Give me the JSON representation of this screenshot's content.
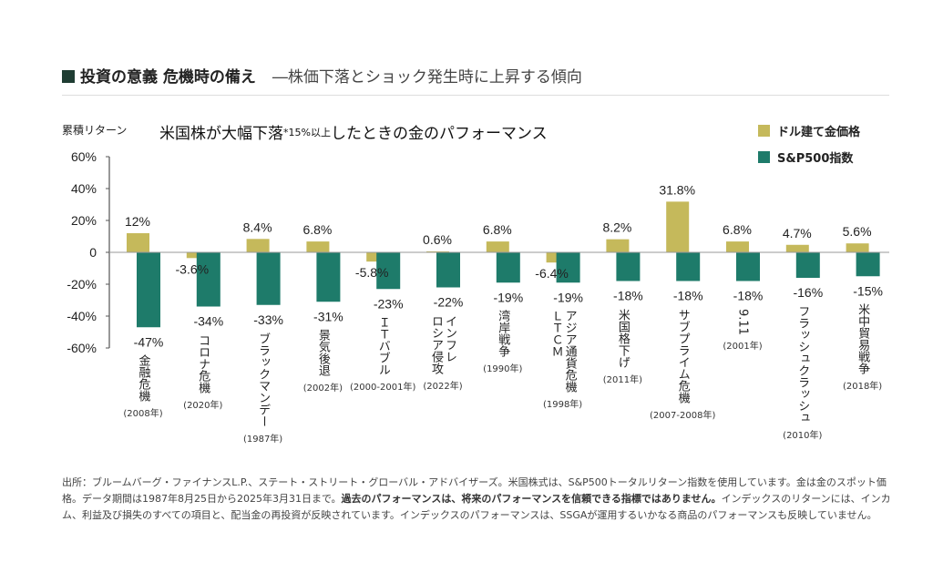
{
  "header": {
    "title": "投資の意義 危機時の備え",
    "subtitle": "―株価下落とショック発生時に上昇する傾向"
  },
  "chart_data": {
    "type": "bar",
    "title": "米国株が大幅下落",
    "title_note": "*15%以上",
    "title_suffix": "したときの金のパフォーマンス",
    "ylabel": "累積リターン",
    "ylim": [
      -60,
      60
    ],
    "yticks": [
      60,
      40,
      20,
      0,
      -20,
      -40,
      -60
    ],
    "ytick_labels": [
      "60%",
      "40%",
      "20%",
      "0",
      "-20%",
      "-40%",
      "-60%"
    ],
    "legend_position": "top-right",
    "categories": [
      {
        "name": "金融危機",
        "year": "(2008年)"
      },
      {
        "name": "コロナ危機",
        "year": "(2020年)"
      },
      {
        "name": "ブラックマンデー",
        "year": "(1987年)"
      },
      {
        "name": "景気後退",
        "year": "(2002年)"
      },
      {
        "name": "ＩＴバブル",
        "year": "(2000-2001年)"
      },
      {
        "name": "インフレ\nロシア侵攻",
        "year": "(2022年)"
      },
      {
        "name": "湾岸戦争",
        "year": "(1990年)"
      },
      {
        "name": "アジア通貨危機\nＬＴＣＭ",
        "year": "(1998年)"
      },
      {
        "name": "米国格下げ",
        "year": "(2011年)"
      },
      {
        "name": "サブプライム危機",
        "year": "(2007-2008年)"
      },
      {
        "name": "9.11",
        "year": "(2001年)"
      },
      {
        "name": "フラッシュクラッシュ",
        "year": "(2010年)"
      },
      {
        "name": "米中貿易戦争",
        "year": "(2018年)"
      }
    ],
    "series": [
      {
        "name": "ドル建て金価格",
        "color": "#c5b95b",
        "values": [
          12,
          -3.6,
          8.4,
          6.8,
          -5.8,
          0.6,
          6.8,
          -6.4,
          8.2,
          31.8,
          6.8,
          4.7,
          5.6
        ],
        "labels": [
          "12%",
          "-3.6%",
          "8.4%",
          "6.8%",
          "-5.8%",
          "0.6%",
          "6.8%",
          "-6.4%",
          "8.2%",
          "31.8%",
          "6.8%",
          "4.7%",
          "5.6%"
        ]
      },
      {
        "name": "S&P500指数",
        "color": "#1e7b6a",
        "values": [
          -47,
          -34,
          -33,
          -31,
          -23,
          -22,
          -19,
          -19,
          -18,
          -18,
          -18,
          -16,
          -15
        ],
        "labels": [
          "-47%",
          "-34%",
          "-33%",
          "-31%",
          "-23%",
          "-22%",
          "-19%",
          "-19%",
          "-18%",
          "-18%",
          "-18%",
          "-16%",
          "-15%"
        ]
      }
    ]
  },
  "footer": {
    "part1": "出所：ブルームバーグ・ファイナンスL.P.、ステート・ストリート・グローバル・アドバイザーズ。米国株式は、S&P500トータルリターン指数を使用しています。金は金のスポット価格。データ期間は1987年8月25日から2025年3月31日まで。",
    "bold": "過去のパフォーマンスは、将来のパフォーマンスを信頼できる指標ではありません。",
    "part2": "インデックスのリターンには、インカム、利益及び損失のすべての項目と、配当金の再投資が反映されています。インデックスのパフォーマンスは、SSGAが運用するいかなる商品のパフォーマンスも反映していません。"
  }
}
